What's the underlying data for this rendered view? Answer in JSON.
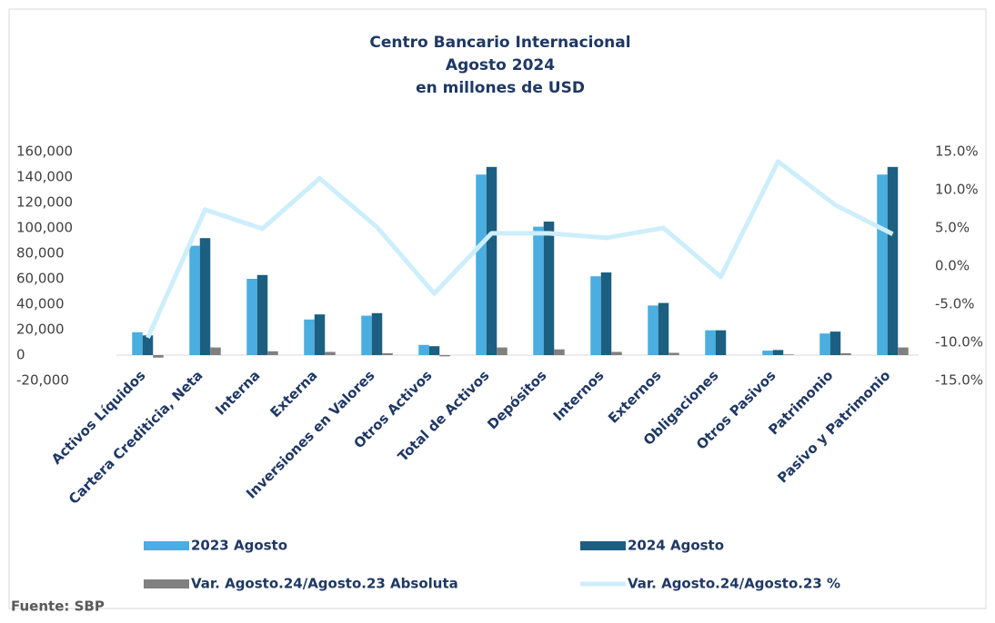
{
  "chart_data": {
    "type": "bar_line",
    "title": "Centro Bancario Internacional",
    "subtitle": [
      "Agosto 2024",
      "en millones de USD"
    ],
    "source": "Fuente: SBP",
    "categories": [
      "Activos Líquidos",
      "Cartera Crediticia, Neta",
      "Interna",
      "Externa",
      "Inversiones en Valores",
      "Otros Activos",
      "Total de Activos",
      "Depósitos",
      "Internos",
      "Externos",
      "Obligaciones",
      "Otros Pasivos",
      "Patrimonio",
      "Pasivo y Patrimonio"
    ],
    "series": [
      {
        "name": "2023 Agosto",
        "color": "#4aaee0",
        "kind": "bar",
        "values": [
          18000,
          86000,
          60000,
          28000,
          31000,
          8000,
          142000,
          101000,
          62000,
          39000,
          19500,
          3500,
          17000,
          142000
        ]
      },
      {
        "name": "2024 Agosto",
        "color": "#1c5f80",
        "kind": "bar",
        "values": [
          15500,
          92000,
          63000,
          32000,
          33000,
          7000,
          148000,
          105000,
          65000,
          41000,
          19500,
          4000,
          18500,
          148000
        ]
      },
      {
        "name": "Var. Agosto.24/Agosto.23 Absoluta",
        "color": "#808080",
        "kind": "bar",
        "values": [
          -2000,
          6000,
          3000,
          2500,
          1500,
          -1000,
          6000,
          4500,
          2500,
          1800,
          0,
          500,
          1500,
          6000
        ]
      },
      {
        "name": "Var. Agosto.24/Agosto.23 %",
        "color": "#cdeefb",
        "kind": "line",
        "axis": "y2",
        "values": [
          -9.4,
          7.4,
          4.9,
          11.5,
          5.1,
          -3.6,
          4.3,
          4.3,
          3.7,
          5.0,
          -1.4,
          13.7,
          8.0,
          4.2
        ]
      }
    ],
    "ylim": [
      -20000,
      160000
    ],
    "yticks": [
      {
        "value": -20000,
        "label": "-20,000"
      },
      0,
      {
        "value": 20000,
        "label": "20,000"
      },
      {
        "value": 40000,
        "label": "40,000"
      },
      {
        "value": 60000,
        "label": "60,000"
      },
      {
        "value": 80000,
        "label": "80,000"
      },
      {
        "value": 100000,
        "label": "100,000"
      },
      {
        "value": 120000,
        "label": "120,000"
      },
      {
        "value": 140000,
        "label": "140,000"
      },
      {
        "value": 160000,
        "label": "160,000"
      }
    ],
    "y2lim": [
      -15,
      15
    ],
    "y2ticks": [
      {
        "value": -15,
        "label": "-15.0%"
      },
      {
        "value": -10,
        "label": "-10.0%"
      },
      {
        "value": -5,
        "label": "-5.0%"
      },
      {
        "value": 0,
        "label": "0.0%"
      },
      {
        "value": 5,
        "label": "5.0%"
      },
      {
        "value": 10,
        "label": "10.0%"
      },
      {
        "value": 15,
        "label": "15.0%"
      }
    ],
    "grid": false
  }
}
